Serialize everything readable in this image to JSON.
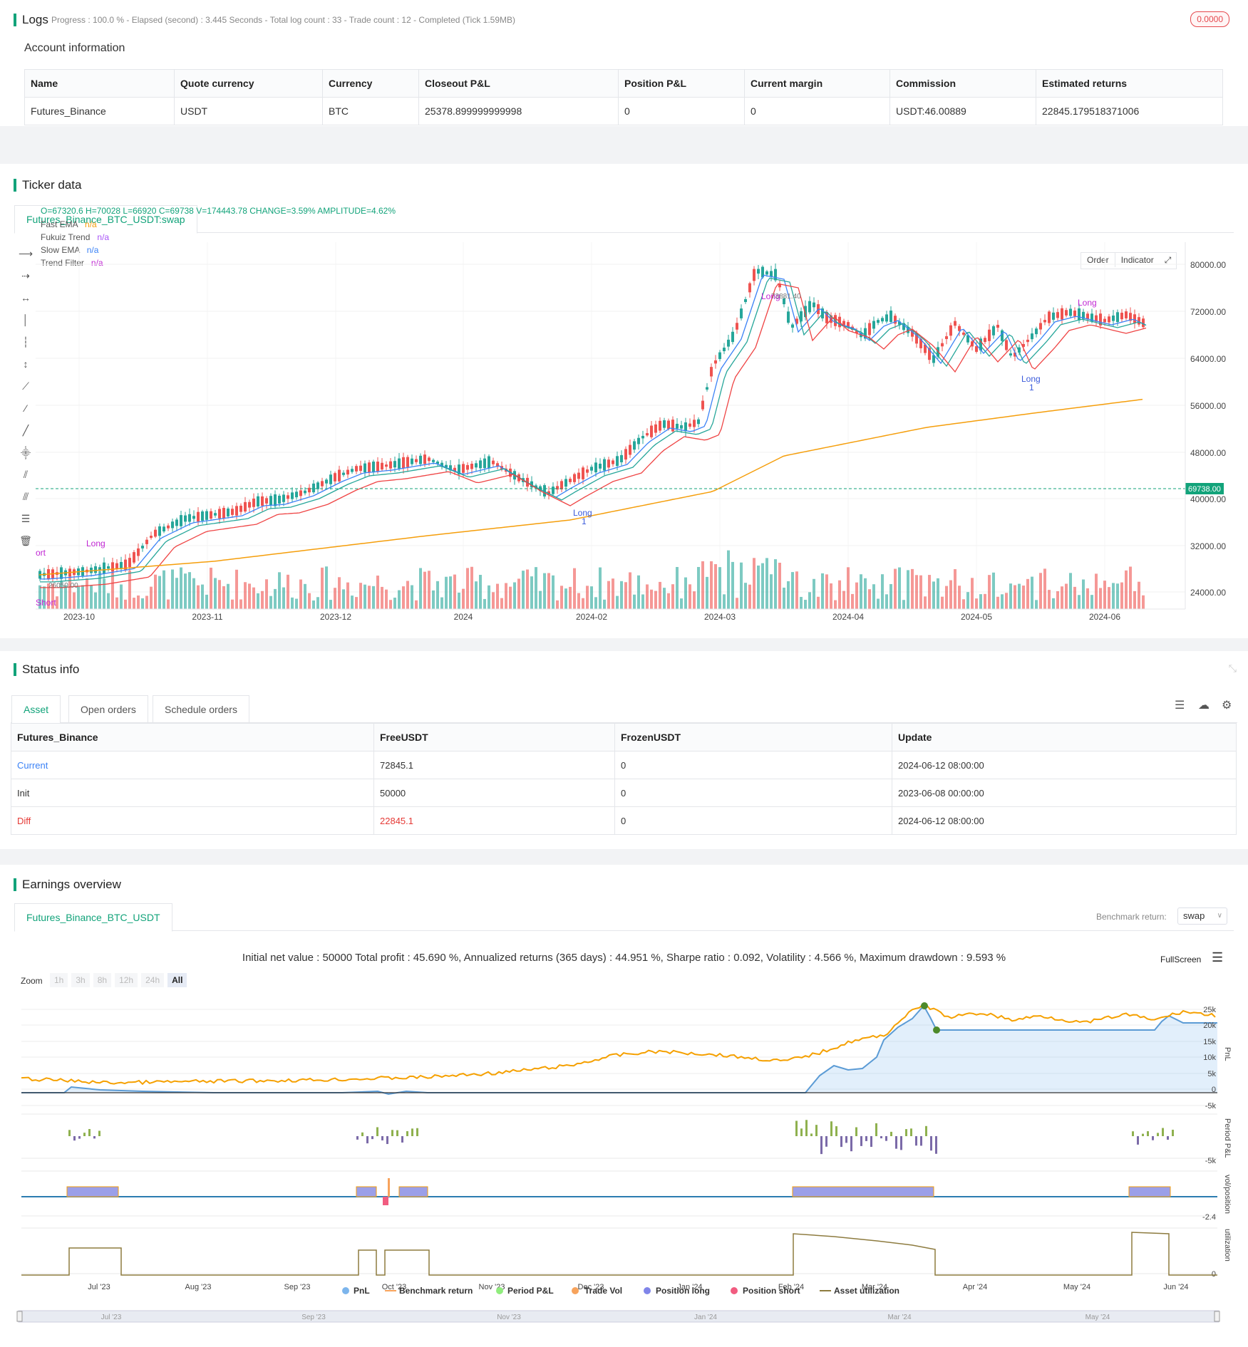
{
  "logs": {
    "title": "Logs",
    "progress_text": "Progress : 100.0 % - Elapsed (second) : 3.445  Seconds - Total log count : 33 - Trade count : 12 - Completed (Tick 1.59MB)",
    "badge": "0.0000"
  },
  "account": {
    "title": "Account information",
    "columns": [
      "Name",
      "Quote currency",
      "Currency",
      "Closeout P&L",
      "Position P&L",
      "Current margin",
      "Commission",
      "Estimated returns"
    ],
    "row": [
      "Futures_Binance",
      "USDT",
      "BTC",
      "25378.899999999998",
      "0",
      "0",
      "USDT:46.00889",
      "22845.179518371006"
    ]
  },
  "ticker": {
    "title": "Ticker data",
    "tab": "Futures_Binance_BTC_USDT:swap",
    "ohlc": "O=67320.6 H=70028 L=66920 C=69738 V=174443.78 CHANGE=3.59% AMPLITUDE=4.62%",
    "legend": [
      {
        "name": "Fast EMA",
        "value": "n/a",
        "color": "#f59e0b"
      },
      {
        "name": "Fukuiz Trend",
        "value": "n/a",
        "color": "#a855f7"
      },
      {
        "name": "Slow EMA",
        "value": "n/a",
        "color": "#3b82f6"
      },
      {
        "name": "Trend Filter",
        "value": "n/a",
        "color": "#c026d3"
      }
    ],
    "buttons": {
      "order": "Order",
      "indicator": "Indicator"
    },
    "price_tag": "69738.00",
    "y_ticks": [
      "80000.00",
      "72000.00",
      "64000.00",
      "56000.00",
      "48000.00",
      "40000.00",
      "32000.00",
      "24000.00"
    ],
    "x_ticks": [
      "2023-10",
      "2023-11",
      "2023-12",
      "2024",
      "2024-02",
      "2024-03",
      "2024-04",
      "2024-05",
      "2024-06"
    ],
    "annotations": {
      "long": "Long",
      "short": "Short",
      "one": "1",
      "price_hi": "73881.40",
      "price_lo": "26050.00",
      "short_clip": "ort"
    }
  },
  "status": {
    "title": "Status info",
    "tabs": [
      "Asset",
      "Open orders",
      "Schedule orders"
    ],
    "columns": [
      "Futures_Binance",
      "FreeUSDT",
      "FrozenUSDT",
      "Update"
    ],
    "rows": [
      [
        "Current",
        "72845.1",
        "0",
        "2024-06-12 08:00:00"
      ],
      [
        "Init",
        "50000",
        "0",
        "2023-06-08 00:00:00"
      ],
      [
        "Diff",
        "22845.1",
        "0",
        "2024-06-12 08:00:00"
      ]
    ]
  },
  "earnings": {
    "title": "Earnings overview",
    "tab": "Futures_Binance_BTC_USDT",
    "benchmark_label": "Benchmark return:",
    "benchmark_value": "swap",
    "summary": "Initial net value : 50000 Total profit : 45.690 %, Annualized returns (365 days) : 44.951 %, Sharpe ratio : 0.092, Volatility : 4.566 %, Maximum drawdown : 9.593 %",
    "fullscreen": "FullScreen",
    "zoom_label": "Zoom",
    "zoom_buttons": [
      "1h",
      "3h",
      "8h",
      "12h",
      "24h",
      "All"
    ],
    "pnl_ticks": [
      "25k",
      "20k",
      "15k",
      "10k",
      "5k",
      "0",
      "-5k"
    ],
    "axis_titles": [
      "PnL",
      "Period P&L",
      "vol/position",
      "utilization"
    ],
    "period_tick": "-5k",
    "vol_tick": "-2.4",
    "util_tick": "0",
    "x_ticks": [
      "Jul '23",
      "Aug '23",
      "Sep '23",
      "Oct '23",
      "Nov '23",
      "Dec '23",
      "Jan '24",
      "Feb '24",
      "Mar '24",
      "Apr '24",
      "May '24",
      "Jun '24"
    ],
    "nav_ticks": [
      "Jul '23",
      "Sep '23",
      "Nov '23",
      "Jan '24",
      "Mar '24",
      "May '24"
    ],
    "legend": [
      {
        "name": "PnL",
        "color": "#7cb5ec"
      },
      {
        "name": "Benchmark return",
        "color": "#f7a35c"
      },
      {
        "name": "Period P&L",
        "color": "#90ed7d"
      },
      {
        "name": "Trade Vol",
        "color": "#f7a35c"
      },
      {
        "name": "Position long",
        "color": "#8085e9"
      },
      {
        "name": "Position short",
        "color": "#f15c80"
      },
      {
        "name": "Asset utilization",
        "color": "#8d7b3f"
      }
    ]
  }
}
